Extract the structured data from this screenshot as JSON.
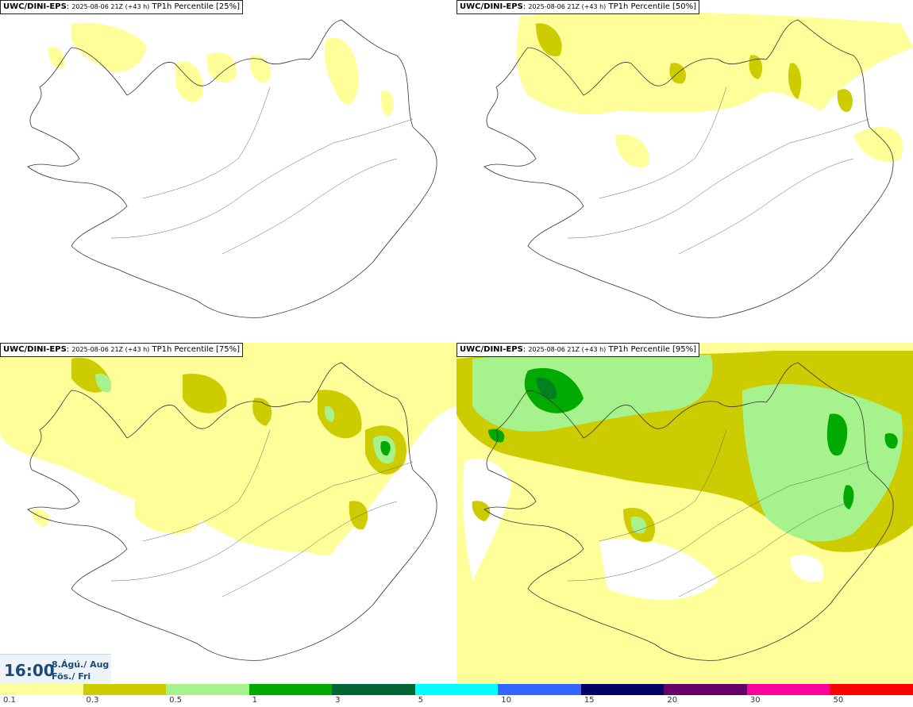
{
  "panels": [
    {
      "model": "UWC/DINI-EPS",
      "run": "2025-08-06 21Z (+43 h)",
      "product": "TP1h Percentile [25%]"
    },
    {
      "model": "UWC/DINI-EPS",
      "run": "2025-08-06 21Z (+43 h)",
      "product": "TP1h Percentile [50%]"
    },
    {
      "model": "UWC/DINI-EPS",
      "run": "2025-08-06 21Z (+43 h)",
      "product": "TP1h Percentile [75%]"
    },
    {
      "model": "UWC/DINI-EPS",
      "run": "2025-08-06 21Z (+43 h)",
      "product": "TP1h Percentile [95%]"
    }
  ],
  "time": {
    "clock": "16:00",
    "date_line1": "8.Ágú./ Aug",
    "date_line2": "Fös./ Fri"
  },
  "legend": {
    "colors": [
      "#ffff99",
      "#cccc00",
      "#a6f28c",
      "#00aa00",
      "#006633",
      "#00ffff",
      "#3366ff",
      "#000066",
      "#660066",
      "#ff0099",
      "#ff0000"
    ],
    "tick_labels": [
      "0.1",
      "0.3",
      "0.5",
      "1",
      "3",
      "5",
      "10",
      "15",
      "20",
      "30",
      "50"
    ]
  }
}
